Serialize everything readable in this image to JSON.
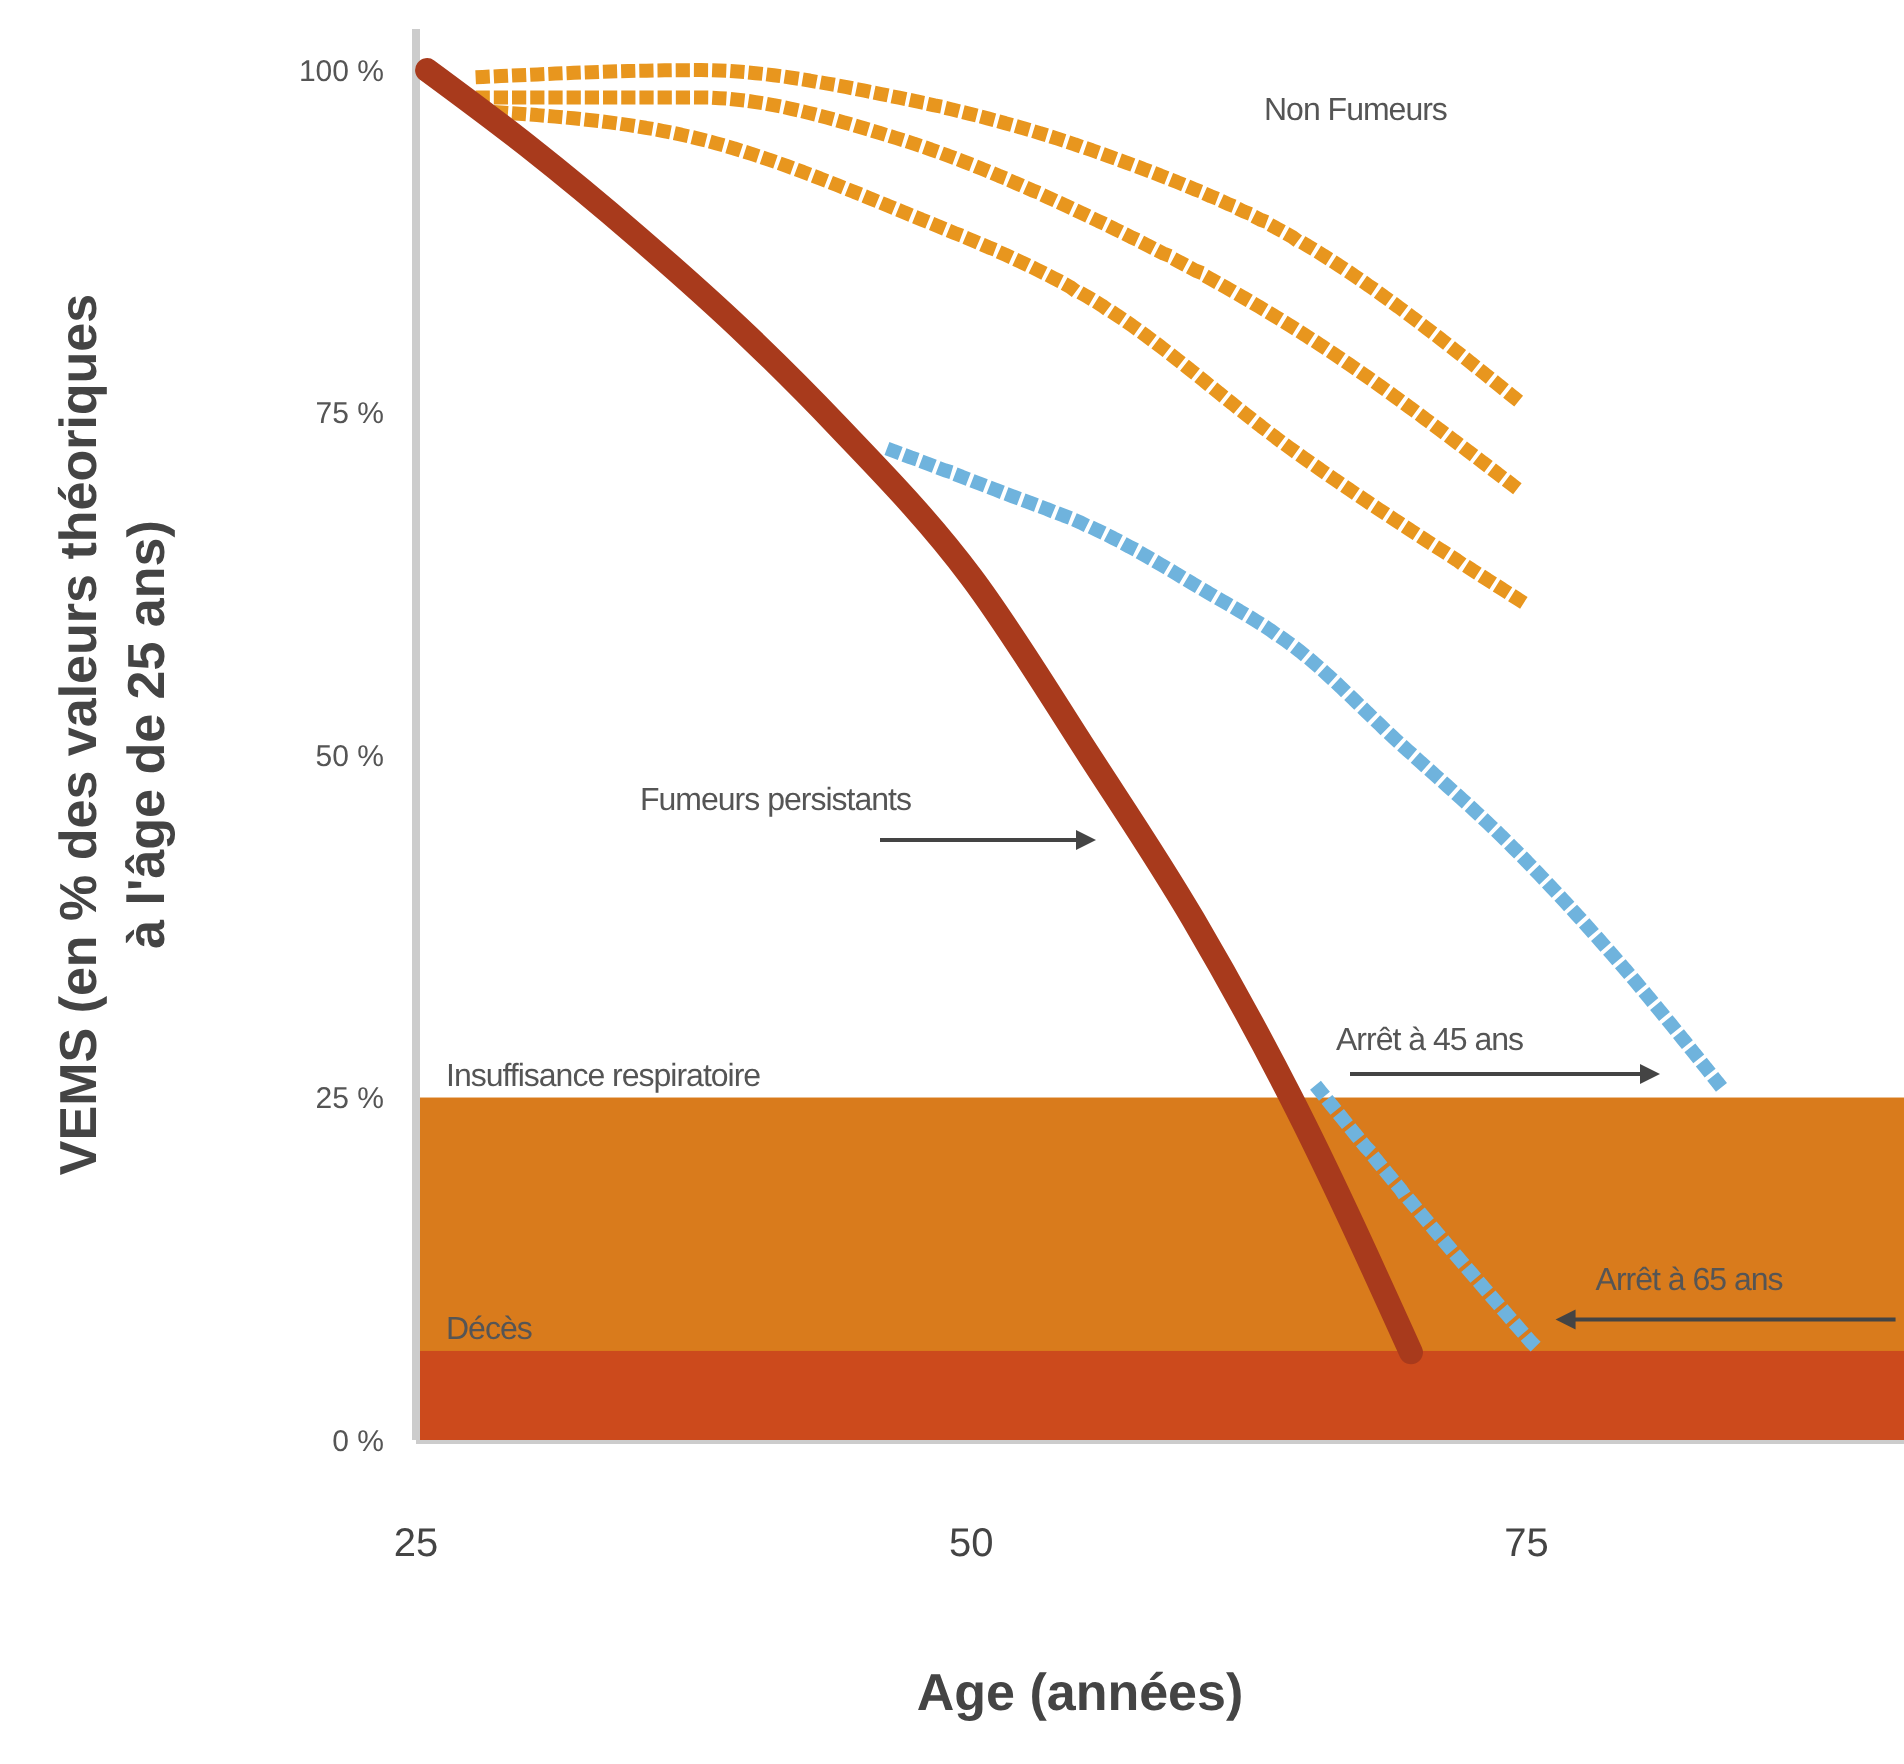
{
  "chart_data": {
    "type": "line",
    "xlabel": "Age (années)",
    "ylabel": "VEMS (en % des valeurs théoriques\nà l'âge de 25 ans)",
    "xlim": [
      25,
      92
    ],
    "xticks": [
      25,
      50,
      75
    ],
    "ylim": [
      0,
      103
    ],
    "yticks": [
      {
        "value": 0,
        "label": "0 %"
      },
      {
        "value": 25,
        "label": "25 %"
      },
      {
        "value": 50,
        "label": "50 %"
      },
      {
        "value": 75,
        "label": "75 %"
      },
      {
        "value": 100,
        "label": "100 %"
      }
    ],
    "series": [
      {
        "color": "#e8961e",
        "line_style": "dotted",
        "x": [
          28,
          37.7,
          46.7,
          55.7,
          64.7,
          74.6
        ],
        "values": [
          99.5,
          100,
          98,
          94,
          87.6,
          75.9
        ]
      },
      {
        "color": "#e8961e",
        "line_style": "dotted",
        "x": [
          28,
          37.7,
          46.7,
          55.7,
          64.7,
          74.7
        ],
        "values": [
          98,
          98,
          95,
          89,
          81,
          69.3
        ]
      },
      {
        "color": "#e8961e",
        "line_style": "dotted",
        "x": [
          28,
          37.7,
          46.7,
          55.7,
          64.7,
          74.7
        ],
        "values": [
          97,
          95,
          89.8,
          83,
          72,
          61.3
        ]
      },
      {
        "color": "#6fb3dd",
        "line_style": "dotted",
        "x": [
          46.5,
          51.2,
          55.7,
          60.2,
          64.7,
          69.2,
          74.3,
          79.1,
          83.9
        ],
        "values": [
          72.2,
          69.3,
          66.4,
          62.3,
          57.7,
          51,
          43.4,
          35,
          25.5
        ]
      },
      {
        "color": "#6fb3dd",
        "line_style": "dotted",
        "x": [
          65.7,
          70.1,
          75.5
        ],
        "values": [
          25.5,
          16.8,
          6.6
        ]
      },
      {
        "color": "#a83a1c",
        "line_style": "solid",
        "x": [
          25.5,
          30,
          35,
          40,
          44,
          50,
          55.3,
          60,
          64.4,
          69.8
        ],
        "values": [
          100,
          94.5,
          87.8,
          80.5,
          74,
          63,
          50,
          38,
          25,
          6.4
        ]
      }
    ],
    "bands": [
      {
        "axis": "y",
        "from": 0,
        "to": 25,
        "label": "Insuffisance respiratoire",
        "color": "#d97b1c"
      },
      {
        "axis": "y",
        "from": 0,
        "to": 6.5,
        "label": "Décès",
        "color": "#cc4a1c"
      }
    ],
    "annotations": [
      "Non Fumeurs",
      "Fumeurs persistants",
      "Arrêt à 45 ans",
      {
        "text": "Arrêt à 65 ans",
        "x": 75.5,
        "y": 6.6
      }
    ]
  }
}
